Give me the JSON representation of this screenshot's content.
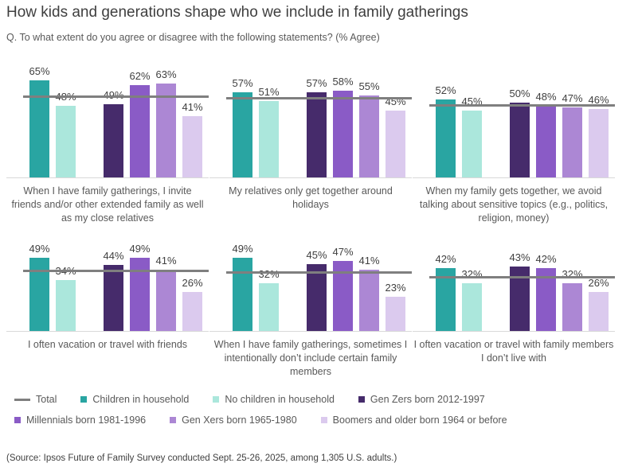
{
  "title": "How kids and generations shape who we include in family gatherings",
  "subtitle": "Q. To what extent do you agree or disagree with the following statements? (% Agree)",
  "source": "(Source: Ipsos Future of Family Survey conducted Sept. 25-26, 2025, among 1,305 U.S. adults.)",
  "colors": {
    "total_line": "#7f7f7f",
    "axis_line": "#d9d9d9",
    "title_text": "#3f3f3f",
    "body_text": "#595959",
    "value_label_text": "#404040"
  },
  "legend": {
    "rows": [
      [
        {
          "label": "Total",
          "swatch": "line",
          "color": "#7f7f7f"
        },
        {
          "label": "Children in household",
          "swatch": "square",
          "color": "#29a5a2"
        },
        {
          "label": "No children in household",
          "swatch": "square",
          "color": "#abe7dc"
        },
        {
          "label": "Gen Zers born 2012-1997",
          "swatch": "square",
          "color": "#462b6b"
        }
      ],
      [
        {
          "label": "Millennials born 1981-1996",
          "swatch": "square",
          "color": "#8a5bc6"
        },
        {
          "label": "Gen Xers born 1965-1980",
          "swatch": "square",
          "color": "#ac87d4"
        },
        {
          "label": "Boomers and older born 1964 or before",
          "swatch": "square",
          "color": "#dbcaee"
        }
      ]
    ]
  },
  "chart_data": {
    "type": "bar",
    "unit": "%",
    "ylim": [
      0,
      70
    ],
    "grid": false,
    "legend_position": "bottom",
    "series": [
      {
        "name": "Children in household",
        "color": "#29a5a2"
      },
      {
        "name": "No children in household",
        "color": "#abe7dc"
      },
      {
        "name": "Gen Zers born 2012-1997",
        "color": "#462b6b"
      },
      {
        "name": "Millennials born 1981-1996",
        "color": "#8a5bc6"
      },
      {
        "name": "Gen Xers born 1965-1980",
        "color": "#ac87d4"
      },
      {
        "name": "Boomers and older born 1964 or before",
        "color": "#dbcaee"
      }
    ],
    "total_line": {
      "label": "Total",
      "color": "#7f7f7f"
    },
    "panels": [
      {
        "caption": "When I have family gatherings, I invite friends and/or other extended family as well as my close relatives",
        "values": [
          65,
          48,
          49,
          62,
          63,
          41
        ],
        "total": 54
      },
      {
        "caption": "My relatives only get together around holidays",
        "values": [
          57,
          51,
          57,
          58,
          55,
          45
        ],
        "total": 53
      },
      {
        "caption": "When my family gets together, we avoid talking about sensitive topics (e.g., politics, religion, money)",
        "values": [
          52,
          45,
          50,
          48,
          47,
          46
        ],
        "total": 48
      },
      {
        "caption": "I often vacation or travel with friends",
        "values": [
          49,
          34,
          44,
          49,
          41,
          26
        ],
        "total": 40
      },
      {
        "caption": "When I have family gatherings, sometimes I intentionally don’t include certain family members",
        "values": [
          49,
          32,
          45,
          47,
          41,
          23
        ],
        "total": 39
      },
      {
        "caption": "I often vacation or travel with family members I don’t live with",
        "values": [
          42,
          32,
          43,
          42,
          32,
          26
        ],
        "total": 36
      }
    ]
  }
}
